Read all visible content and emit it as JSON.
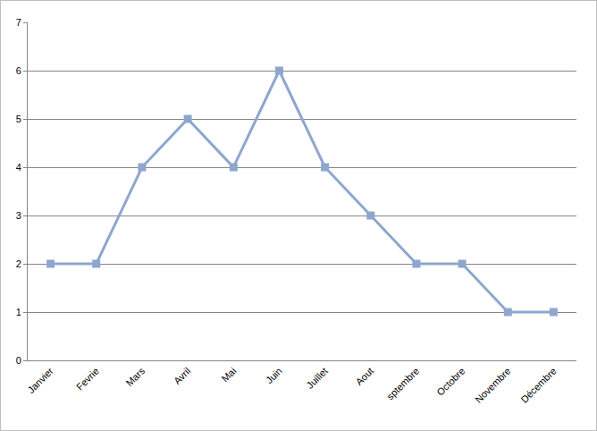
{
  "chart_data": {
    "type": "line",
    "categories": [
      "Janvier",
      "Fevrie",
      "Mars",
      "Avril",
      "Mai",
      "Juin",
      "Juillet",
      "Aout",
      "sptembre",
      "Octobre",
      "Novembre",
      "Décembre"
    ],
    "values": [
      2,
      2,
      4,
      5,
      4,
      6,
      4,
      3,
      2,
      2,
      1,
      1
    ],
    "color": "#8FA6CE",
    "marker": "square",
    "line_style": "solid",
    "ylim": [
      0,
      7
    ],
    "yticks": [
      0,
      1,
      2,
      3,
      4,
      5,
      6,
      7
    ],
    "grid": true
  }
}
